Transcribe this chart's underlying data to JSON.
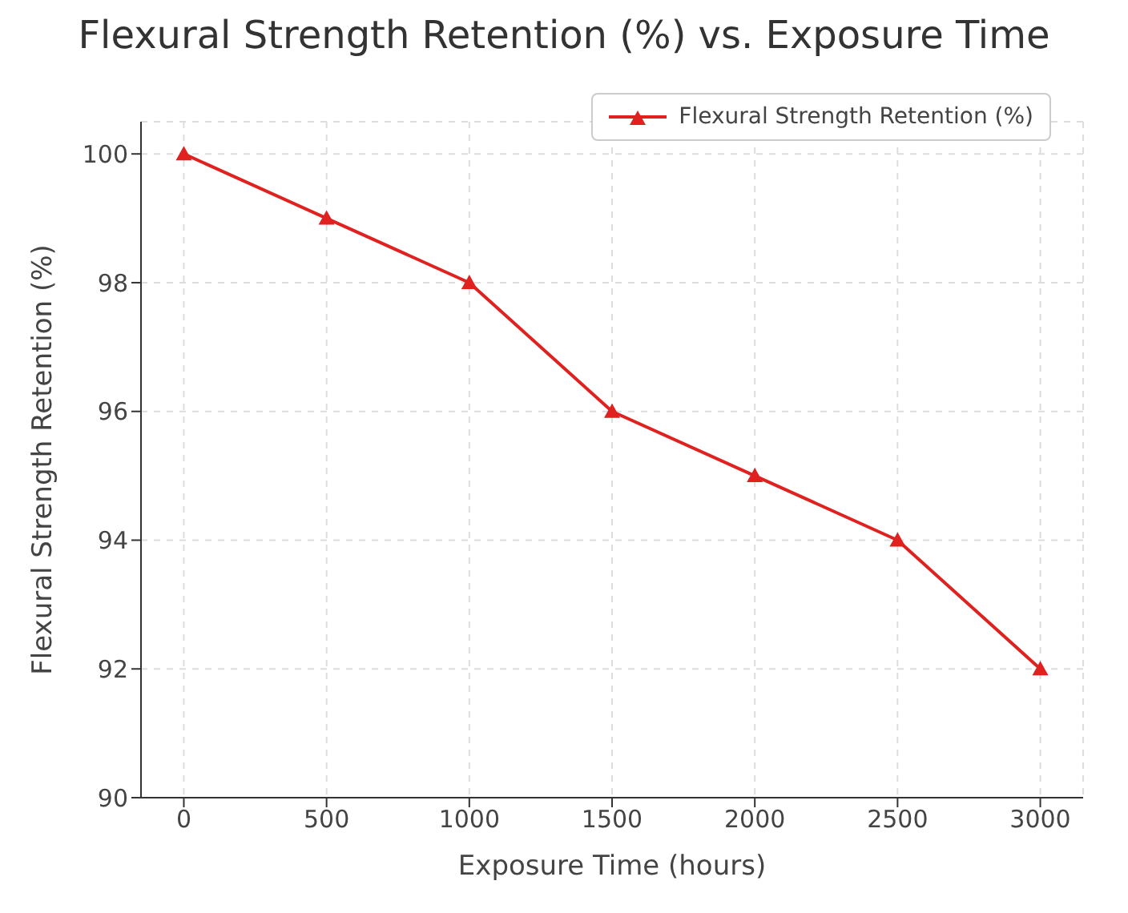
{
  "chart_data": {
    "type": "line",
    "title": "Flexural Strength Retention (%) vs. Exposure Time",
    "xlabel": "Exposure Time (hours)",
    "ylabel": "Flexural Strength Retention (%)",
    "x": [
      0,
      500,
      1000,
      1500,
      2000,
      2500,
      3000
    ],
    "series": [
      {
        "name": "Flexural Strength Retention (%)",
        "color": "#e0211f",
        "values": [
          100,
          99,
          98,
          96,
          95,
          94,
          92
        ]
      }
    ],
    "xlim": [
      -150,
      3150
    ],
    "xticks": [
      0,
      500,
      1000,
      1500,
      2000,
      2500,
      3000
    ],
    "ylim": [
      90,
      100.5
    ],
    "yticks": [
      90,
      92,
      94,
      96,
      98,
      100
    ],
    "grid": true,
    "legend": "top right",
    "marker": "triangle",
    "line_style": "solid"
  }
}
